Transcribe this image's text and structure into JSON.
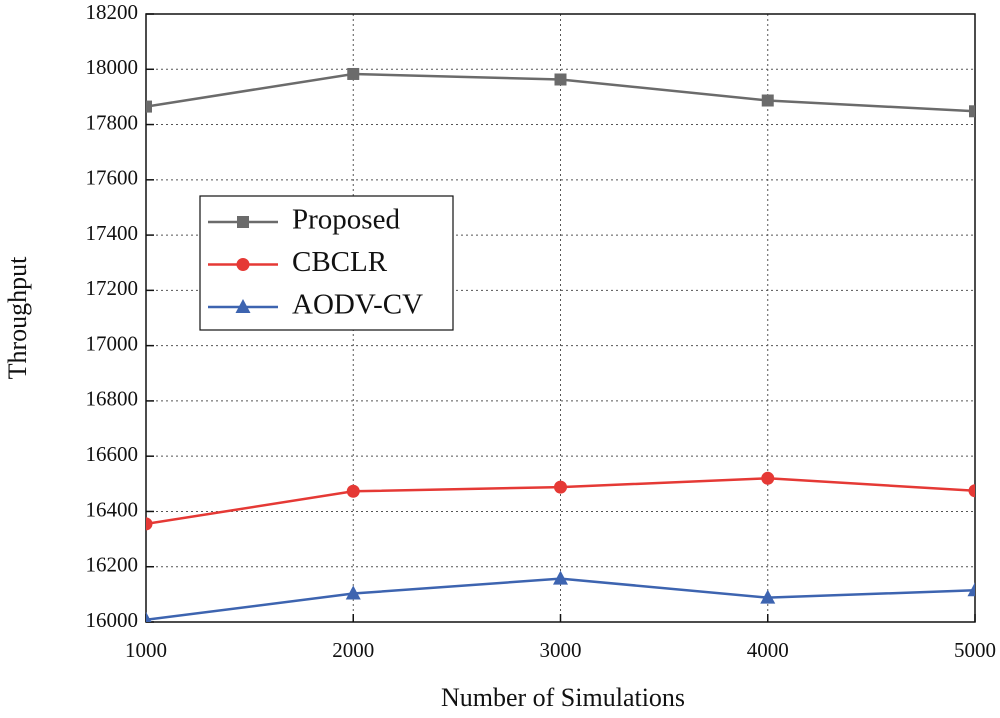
{
  "chart_data": {
    "type": "line",
    "x_label": "Number of Simulations",
    "y_label": "Throughput",
    "x": [
      1000,
      2000,
      3000,
      4000,
      5000
    ],
    "series": [
      {
        "name": "Proposed",
        "color": "#6b6b6b",
        "marker": "square",
        "values": [
          17865,
          17983,
          17963,
          17887,
          17848
        ]
      },
      {
        "name": "CBCLR",
        "color": "#e53935",
        "marker": "circle",
        "values": [
          16355,
          16473,
          16488,
          16520,
          16475
        ]
      },
      {
        "name": "AODV-CV",
        "color": "#3d64b0",
        "marker": "triangle",
        "values": [
          16008,
          16103,
          16157,
          16088,
          16115
        ]
      }
    ],
    "xlim": [
      1000,
      5000
    ],
    "xticks": [
      1000,
      2000,
      3000,
      4000,
      5000
    ],
    "ylim": [
      16000,
      18200
    ],
    "yticks": [
      16000,
      16200,
      16400,
      16600,
      16800,
      17000,
      17200,
      17400,
      17600,
      17800,
      18000,
      18200
    ],
    "grid": true,
    "legend_loc": "center left"
  }
}
